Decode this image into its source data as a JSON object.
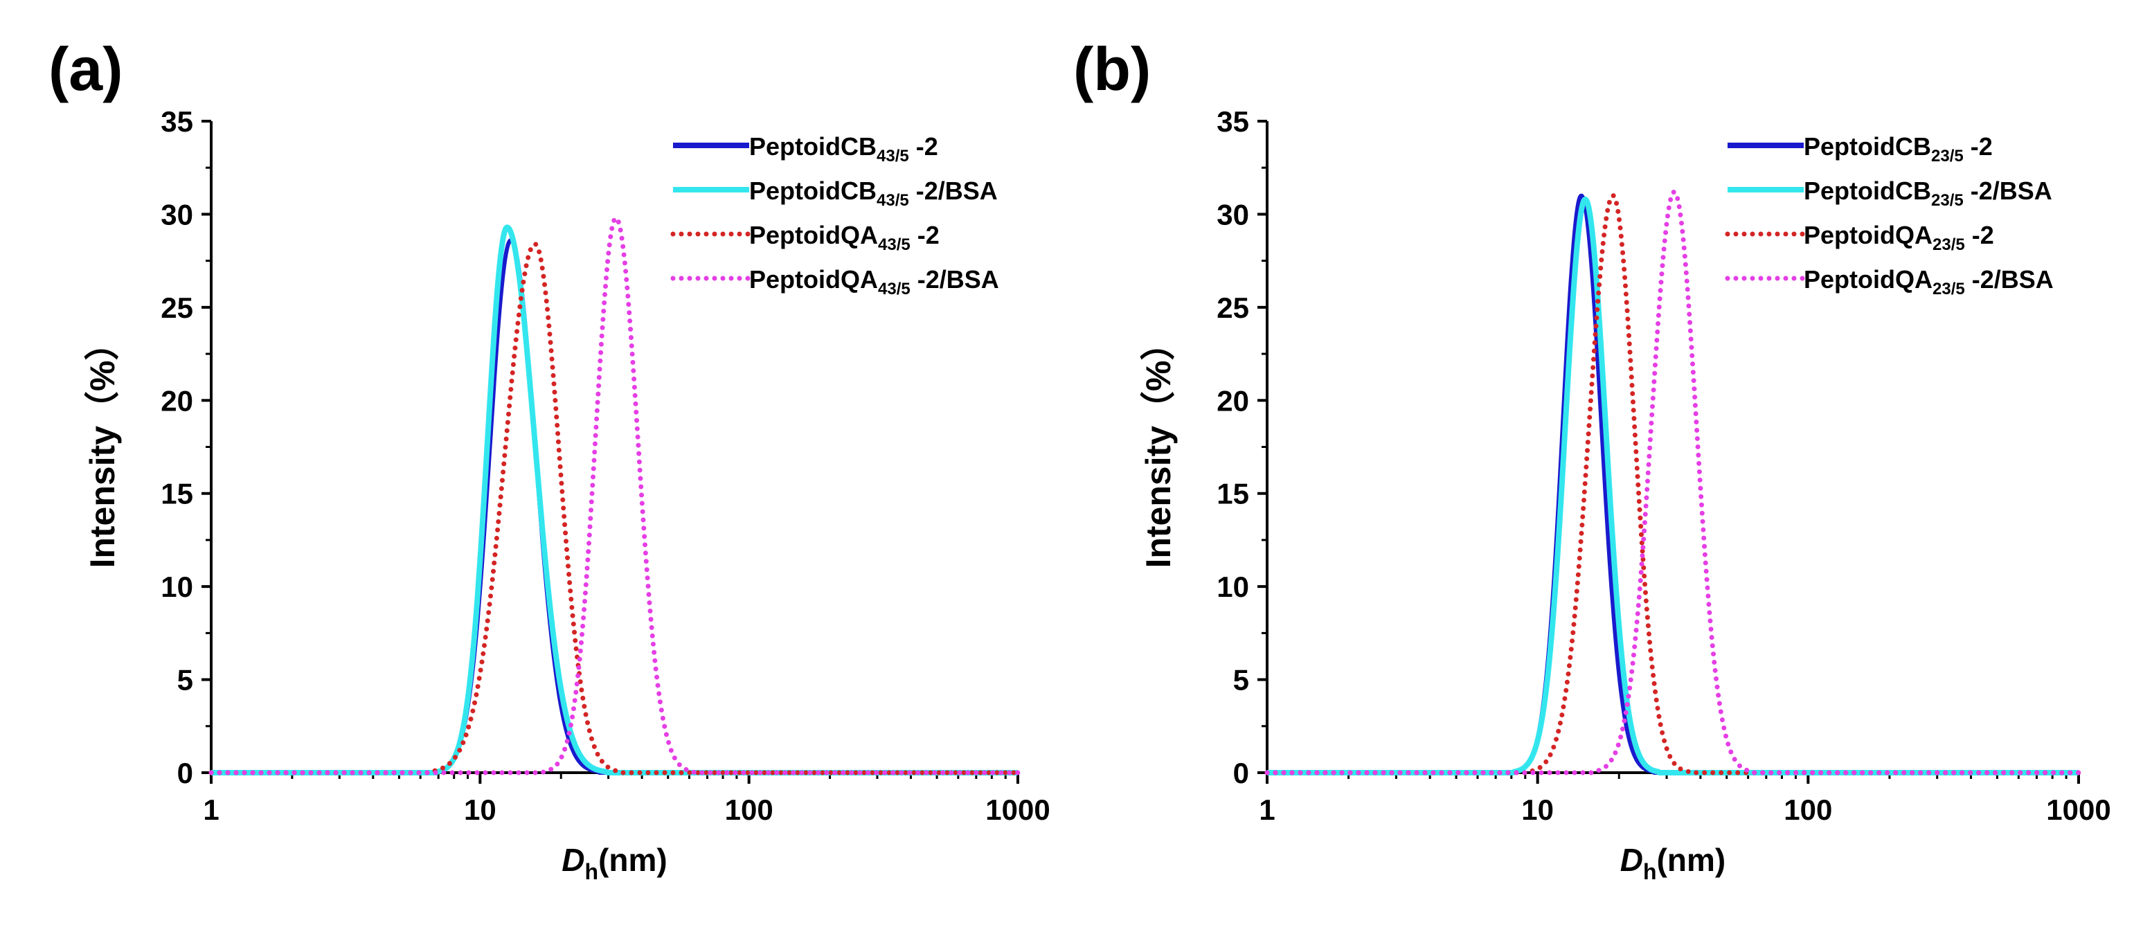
{
  "figure": {
    "panels": [
      {
        "panel_label": "(a)",
        "x_tick_labels": [
          "1",
          "10",
          "100",
          "1000"
        ],
        "y_tick_labels": [
          "0",
          "5",
          "10",
          "15",
          "20",
          "25",
          "30",
          "35"
        ],
        "xlabel_main": "D",
        "xlabel_sub": "h",
        "xlabel_rest": "(nm)",
        "ylabel": "Intensity（%）",
        "legend": [
          {
            "pre": "PeptoidCB",
            "sub": "43/5",
            "post": " -2"
          },
          {
            "pre": "PeptoidCB",
            "sub": "43/5",
            "post": " -2/BSA"
          },
          {
            "pre": "PeptoidQA",
            "sub": "43/5",
            "post": " -2"
          },
          {
            "pre": "PeptoidQA",
            "sub": "43/5",
            "post": " -2/BSA"
          }
        ]
      },
      {
        "panel_label": "(b)",
        "x_tick_labels": [
          "1",
          "10",
          "100",
          "1000"
        ],
        "y_tick_labels": [
          "0",
          "5",
          "10",
          "15",
          "20",
          "25",
          "30",
          "35"
        ],
        "xlabel_main": "D",
        "xlabel_sub": "h",
        "xlabel_rest": "(nm)",
        "ylabel": "Intensity（%）",
        "legend": [
          {
            "pre": "PeptoidCB",
            "sub": "23/5",
            "post": " -2"
          },
          {
            "pre": "PeptoidCB",
            "sub": "23/5",
            "post": " -2/BSA"
          },
          {
            "pre": "PeptoidQA",
            "sub": "23/5",
            "post": " -2"
          },
          {
            "pre": "PeptoidQA",
            "sub": "23/5",
            "post": " -2/BSA"
          }
        ]
      }
    ]
  },
  "chart_data": [
    {
      "type": "line",
      "title": "(a)",
      "xlabel": "Dh(nm)",
      "ylabel": "Intensity（%）",
      "xscale": "log",
      "xlim": [
        1,
        1000
      ],
      "ylim": [
        0,
        35
      ],
      "legend_position": "top-right",
      "series": [
        {
          "name": "PeptoidCB43/5 -2",
          "color": "#1a1acd",
          "style": "solid",
          "peak_x": 13,
          "peak_y": 28.6,
          "x_start": 8,
          "x_end": 23
        },
        {
          "name": "PeptoidCB43/5 -2/BSA",
          "color": "#33e6ee",
          "style": "solid",
          "peak_x": 12.6,
          "peak_y": 29.3,
          "x_start": 8,
          "x_end": 24
        },
        {
          "name": "PeptoidQA43/5 -2",
          "color": "#d42424",
          "style": "dotted",
          "peak_x": 16,
          "peak_y": 28.4,
          "x_start": 8,
          "x_end": 28
        },
        {
          "name": "PeptoidQA43/5 -2/BSA",
          "color": "#e53ee5",
          "style": "dotted",
          "peak_x": 32,
          "peak_y": 29.8,
          "x_start": 20,
          "x_end": 53
        }
      ]
    },
    {
      "type": "line",
      "title": "(b)",
      "xlabel": "Dh(nm)",
      "ylabel": "Intensity（%）",
      "xscale": "log",
      "xlim": [
        1,
        1000
      ],
      "ylim": [
        0,
        35
      ],
      "legend_position": "top-right",
      "series": [
        {
          "name": "PeptoidCB23/5 -2",
          "color": "#1a1acd",
          "style": "solid",
          "peak_x": 14.5,
          "peak_y": 31.0,
          "x_start": 9.5,
          "x_end": 23
        },
        {
          "name": "PeptoidCB23/5 -2/BSA",
          "color": "#33e6ee",
          "style": "solid",
          "peak_x": 15,
          "peak_y": 30.8,
          "x_start": 9.5,
          "x_end": 24
        },
        {
          "name": "PeptoidQA23/5 -2",
          "color": "#d42424",
          "style": "dotted",
          "peak_x": 19,
          "peak_y": 31.0,
          "x_start": 11,
          "x_end": 31
        },
        {
          "name": "PeptoidQA23/5 -2/BSA",
          "color": "#e53ee5",
          "style": "dotted",
          "peak_x": 32,
          "peak_y": 31.2,
          "x_start": 19,
          "x_end": 53
        }
      ]
    }
  ]
}
